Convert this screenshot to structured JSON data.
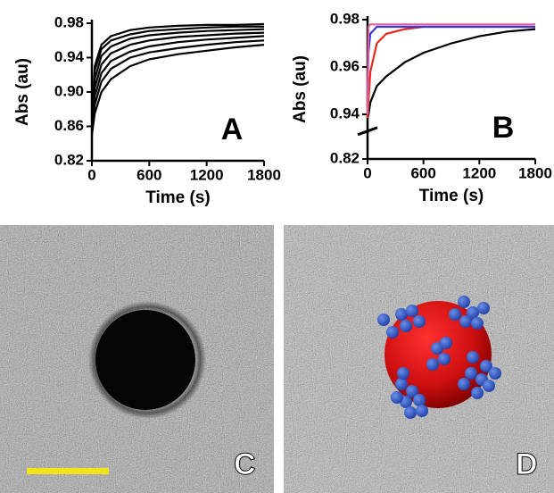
{
  "chart_data": [
    {
      "type": "line",
      "x_label": "Time (s)",
      "y_label": "Abs (au)",
      "annotation": "A",
      "x": [
        0,
        30,
        100,
        200,
        400,
        600,
        900,
        1200,
        1500,
        1800
      ],
      "xlim": [
        0,
        1800
      ],
      "xticks": [
        0,
        600,
        1200,
        1800
      ],
      "ylim": [
        0.82,
        0.98
      ],
      "yticks": [
        0.82,
        0.86,
        {
          "value": 0.9,
          "label": "0.90"
        },
        0.94,
        0.98
      ],
      "axis_break": false,
      "series": [
        {
          "color": "#000000",
          "values": [
            0.86,
            0.93,
            0.955,
            0.965,
            0.972,
            0.975,
            0.977,
            0.978,
            0.978,
            0.979
          ]
        },
        {
          "color": "#000000",
          "values": [
            0.86,
            0.925,
            0.95,
            0.96,
            0.967,
            0.971,
            0.973,
            0.975,
            0.976,
            0.976
          ]
        },
        {
          "color": "#000000",
          "values": [
            0.86,
            0.915,
            0.942,
            0.953,
            0.962,
            0.966,
            0.969,
            0.971,
            0.972,
            0.973
          ]
        },
        {
          "color": "#000000",
          "values": [
            0.86,
            0.905,
            0.932,
            0.945,
            0.955,
            0.96,
            0.964,
            0.966,
            0.968,
            0.969
          ]
        },
        {
          "color": "#000000",
          "values": [
            0.86,
            0.895,
            0.922,
            0.936,
            0.947,
            0.953,
            0.958,
            0.961,
            0.963,
            0.965
          ]
        },
        {
          "color": "#000000",
          "values": [
            0.855,
            0.885,
            0.912,
            0.927,
            0.94,
            0.946,
            0.951,
            0.955,
            0.958,
            0.96
          ]
        },
        {
          "color": "#000000",
          "values": [
            0.85,
            0.875,
            0.9,
            0.915,
            0.93,
            0.938,
            0.944,
            0.948,
            0.952,
            0.955
          ]
        }
      ]
    },
    {
      "type": "line",
      "x_label": "Time (s)",
      "y_label": "Abs (au)",
      "annotation": "B",
      "x": [
        0,
        10,
        30,
        100,
        200,
        400,
        600,
        900,
        1200,
        1500,
        1800
      ],
      "xlim": [
        0,
        1800
      ],
      "xticks": [
        0,
        600,
        1200,
        1800
      ],
      "ylim": [
        0.82,
        0.98
      ],
      "yticks": [
        0.82,
        0.94,
        0.96,
        0.98
      ],
      "axis_break": true,
      "series": [
        {
          "color": "#000000",
          "values": [
            0.93,
            0.938,
            0.945,
            0.952,
            0.956,
            0.962,
            0.966,
            0.97,
            0.973,
            0.975,
            0.976
          ]
        },
        {
          "color": "#e8281e",
          "values": [
            0.93,
            0.945,
            0.958,
            0.97,
            0.974,
            0.976,
            0.977,
            0.977,
            0.977,
            0.977,
            0.977
          ]
        },
        {
          "color": "#3b3bd0",
          "values": [
            0.95,
            0.966,
            0.974,
            0.977,
            0.977,
            0.977,
            0.977,
            0.977,
            0.977,
            0.977,
            0.977
          ]
        },
        {
          "color": "#e060a0",
          "values": [
            0.94,
            0.977,
            0.978,
            0.978,
            0.978,
            0.978,
            0.978,
            0.978,
            0.978,
            0.978,
            0.978
          ]
        }
      ]
    }
  ],
  "panels": [
    {
      "label": "C"
    },
    {
      "label": "D"
    }
  ]
}
